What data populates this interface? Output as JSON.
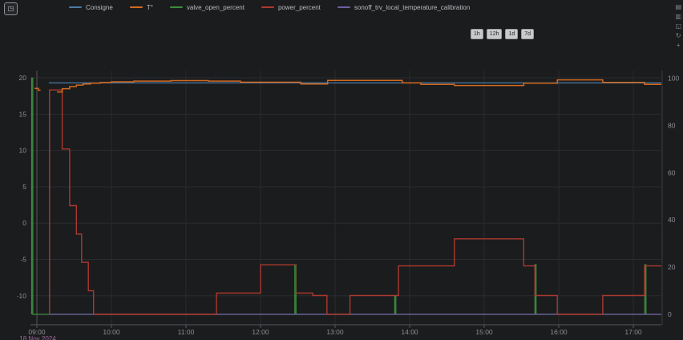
{
  "panel_button": {
    "icon_glyph": "◳"
  },
  "legend": {
    "items": [
      {
        "label": "Consigne",
        "color": "#4a7aa5"
      },
      {
        "label": "T°",
        "color": "#d2691e"
      },
      {
        "label": "valve_open_percent",
        "color": "#3d8b3d"
      },
      {
        "label": "power_percent",
        "color": "#ab382f"
      },
      {
        "label": "sonoff_trv_local_temperature_calibration",
        "color": "#6e5fa3"
      }
    ]
  },
  "range_buttons": [
    "1h",
    "12h",
    "1d",
    "7d"
  ],
  "side_toolbar": {
    "icons": [
      {
        "name": "data-view-icon",
        "glyph": "▤"
      },
      {
        "name": "chart-type-icon",
        "glyph": "▥"
      },
      {
        "name": "zoom-select-icon",
        "glyph": "◱"
      },
      {
        "name": "restore-icon",
        "glyph": "↻"
      },
      {
        "name": "save-image-icon",
        "glyph": "+"
      }
    ]
  },
  "chart_data": {
    "type": "line",
    "grid_color": "#2a2b2e",
    "axis_line_color": "#57585c",
    "tick_label_color": "#8e8f93",
    "x_axis": {
      "labels": [
        "09:00",
        "10:00",
        "11:00",
        "12:00",
        "13:00",
        "14:00",
        "15:00",
        "16:00",
        "17:00"
      ],
      "tick_hours": [
        9,
        10,
        11,
        12,
        13,
        14,
        15,
        16,
        17
      ],
      "date_label": "18 Nov 2024",
      "date_label_color": "#a06ba0",
      "range": [
        8.914,
        17.376
      ]
    },
    "y_left": {
      "ticks": [
        20,
        15,
        10,
        5,
        0,
        -5,
        -10
      ],
      "range": [
        -14,
        21
      ]
    },
    "y_right": {
      "ticks": [
        100,
        80,
        60,
        40,
        20,
        0
      ],
      "range": [
        -4.4,
        103.2
      ]
    },
    "series": [
      {
        "name": "Consigne",
        "axis": "left",
        "color": "#4a7aa5",
        "width": 1.3,
        "points": [
          [
            9.16,
            19.3
          ],
          [
            17.376,
            19.3
          ]
        ]
      },
      {
        "name": "valve_open_percent",
        "axis": "right",
        "color": "#3d8b3d",
        "width": 1.3,
        "points": [
          [
            8.93,
            0
          ],
          [
            8.93,
            100
          ],
          [
            8.945,
            0
          ],
          [
            12.46,
            0
          ],
          [
            12.46,
            21
          ],
          [
            12.475,
            0
          ],
          [
            13.8,
            0
          ],
          [
            13.8,
            8
          ],
          [
            13.815,
            0
          ],
          [
            15.68,
            0
          ],
          [
            15.68,
            21
          ],
          [
            15.695,
            0
          ],
          [
            17.155,
            0
          ],
          [
            17.155,
            21
          ],
          [
            17.17,
            0
          ],
          [
            17.376,
            0
          ]
        ]
      },
      {
        "name": "sonoff_trv_local_temperature_calibration",
        "axis": "right",
        "color": "#6e5fa3",
        "width": 1.3,
        "points": [
          [
            9.17,
            0
          ],
          [
            17.376,
            0
          ]
        ]
      },
      {
        "name": "power_percent",
        "axis": "right",
        "color": "#ab382f",
        "width": 1.4,
        "points": [
          [
            9.17,
            0
          ],
          [
            9.17,
            95
          ],
          [
            9.34,
            70
          ],
          [
            9.44,
            46
          ],
          [
            9.53,
            34
          ],
          [
            9.6,
            22
          ],
          [
            9.69,
            10
          ],
          [
            9.76,
            0
          ],
          [
            11.41,
            0
          ],
          [
            11.41,
            9
          ],
          [
            12.0,
            21
          ],
          [
            12.47,
            9
          ],
          [
            12.7,
            8
          ],
          [
            12.89,
            0
          ],
          [
            13.2,
            0
          ],
          [
            13.2,
            8
          ],
          [
            13.85,
            20.5
          ],
          [
            14.6,
            32
          ],
          [
            15.53,
            20.5
          ],
          [
            15.68,
            8
          ],
          [
            15.98,
            0
          ],
          [
            16.59,
            0
          ],
          [
            16.59,
            8
          ],
          [
            17.15,
            20.5
          ],
          [
            17.376,
            20.5
          ]
        ]
      },
      {
        "name": "T° (early reading)",
        "axis": "left",
        "color": "#d2691e",
        "width": 1.5,
        "points": [
          [
            8.97,
            18.55
          ],
          [
            9.02,
            18.3
          ],
          [
            9.05,
            18.3
          ]
        ]
      },
      {
        "name": "T°",
        "axis": "left",
        "color": "#d2691e",
        "width": 1.5,
        "points": [
          [
            9.27,
            18.05
          ],
          [
            9.34,
            18.5
          ],
          [
            9.44,
            18.8
          ],
          [
            9.53,
            19.0
          ],
          [
            9.62,
            19.15
          ],
          [
            9.72,
            19.25
          ],
          [
            9.85,
            19.35
          ],
          [
            10.0,
            19.45
          ],
          [
            10.3,
            19.55
          ],
          [
            10.8,
            19.62
          ],
          [
            11.3,
            19.55
          ],
          [
            11.73,
            19.4
          ],
          [
            12.54,
            19.15
          ],
          [
            12.9,
            19.65
          ],
          [
            13.9,
            19.3
          ],
          [
            14.15,
            19.1
          ],
          [
            14.6,
            18.95
          ],
          [
            15.53,
            19.25
          ],
          [
            15.98,
            19.72
          ],
          [
            16.59,
            19.37
          ],
          [
            17.15,
            19.1
          ],
          [
            17.376,
            19.1
          ]
        ]
      }
    ]
  }
}
